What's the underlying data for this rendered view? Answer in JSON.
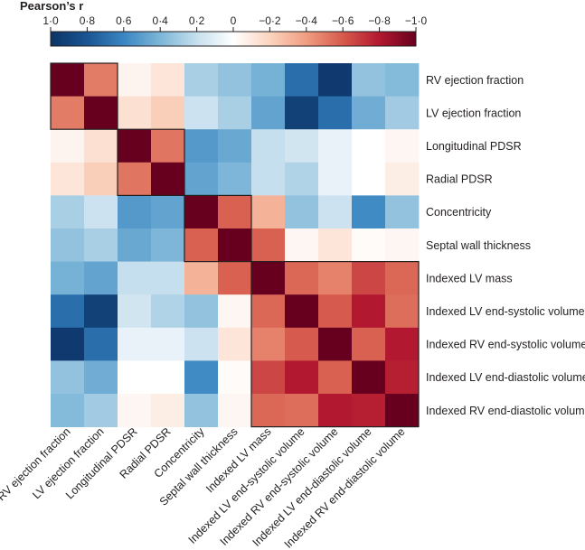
{
  "chart_data": {
    "type": "heatmap",
    "colorbar": {
      "title": "Pearson’s r",
      "range": [
        1.0,
        -1.0
      ],
      "ticks": [
        "1·0",
        "0·8",
        "0·6",
        "0·4",
        "0·2",
        "0",
        "−0·2",
        "−0·4",
        "−0·6",
        "−0·8",
        "−1·0"
      ],
      "tick_values": [
        1.0,
        0.8,
        0.6,
        0.4,
        0.2,
        0.0,
        -0.2,
        -0.4,
        -0.6,
        -0.8,
        -1.0
      ],
      "stops": [
        {
          "v": 1.0,
          "color": "#0d3366"
        },
        {
          "v": 0.8,
          "color": "#1a5593"
        },
        {
          "v": 0.6,
          "color": "#3a86c2"
        },
        {
          "v": 0.4,
          "color": "#7db6d8"
        },
        {
          "v": 0.2,
          "color": "#c6dfee"
        },
        {
          "v": 0.0,
          "color": "#ffffff"
        },
        {
          "v": -0.2,
          "color": "#fbd4bf"
        },
        {
          "v": -0.4,
          "color": "#f09d80"
        },
        {
          "v": -0.6,
          "color": "#d65a4d"
        },
        {
          "v": -0.8,
          "color": "#b2182f"
        },
        {
          "v": -1.0,
          "color": "#67001f"
        }
      ]
    },
    "labels": [
      "RV ejection fraction",
      "LV ejection fraction",
      "Longitudinal PDSR",
      "Radial PDSR",
      "Concentricity",
      "Septal wall thickness",
      "Indexed LV mass",
      "Indexed LV end-systolic volume",
      "Indexed RV end-systolic volume",
      "Indexed LV end-diastolic volume",
      "Indexed RV end-diastolic volume"
    ],
    "matrix": [
      [
        -1.0,
        -0.5,
        -0.05,
        -0.12,
        0.28,
        0.34,
        0.42,
        0.7,
        0.96,
        0.34,
        0.38
      ],
      [
        -0.5,
        -1.0,
        -0.14,
        -0.22,
        0.18,
        0.28,
        0.48,
        0.92,
        0.7,
        0.44,
        0.3
      ],
      [
        -0.05,
        -0.14,
        -1.0,
        -0.52,
        0.52,
        0.46,
        0.2,
        0.16,
        0.08,
        0.0,
        -0.04
      ],
      [
        -0.12,
        -0.22,
        -0.52,
        -1.0,
        0.48,
        0.4,
        0.2,
        0.26,
        0.08,
        0.0,
        -0.08
      ],
      [
        0.28,
        0.18,
        0.52,
        0.48,
        -1.0,
        -0.58,
        -0.32,
        0.34,
        0.18,
        0.58,
        0.34
      ],
      [
        0.34,
        0.28,
        0.46,
        0.4,
        -0.58,
        -1.0,
        -0.58,
        -0.04,
        -0.12,
        -0.02,
        -0.04
      ],
      [
        0.42,
        0.48,
        0.2,
        0.2,
        -0.32,
        -0.58,
        -1.0,
        -0.56,
        -0.48,
        -0.66,
        -0.56
      ],
      [
        0.7,
        0.92,
        0.16,
        0.26,
        0.34,
        -0.04,
        -0.56,
        -1.0,
        -0.6,
        -0.8,
        -0.54
      ],
      [
        0.96,
        0.7,
        0.08,
        0.08,
        0.18,
        -0.12,
        -0.48,
        -0.6,
        -1.0,
        -0.58,
        -0.8
      ],
      [
        0.34,
        0.44,
        0.0,
        0.0,
        0.58,
        -0.02,
        -0.66,
        -0.8,
        -0.58,
        -1.0,
        -0.78
      ],
      [
        0.38,
        0.3,
        -0.04,
        -0.08,
        0.34,
        -0.04,
        -0.56,
        -0.54,
        -0.8,
        -0.78,
        -1.0
      ]
    ],
    "cluster_blocks": [
      {
        "first": 0,
        "last": 1
      },
      {
        "first": 2,
        "last": 3
      },
      {
        "first": 4,
        "last": 5
      },
      {
        "first": 6,
        "last": 10
      }
    ]
  }
}
